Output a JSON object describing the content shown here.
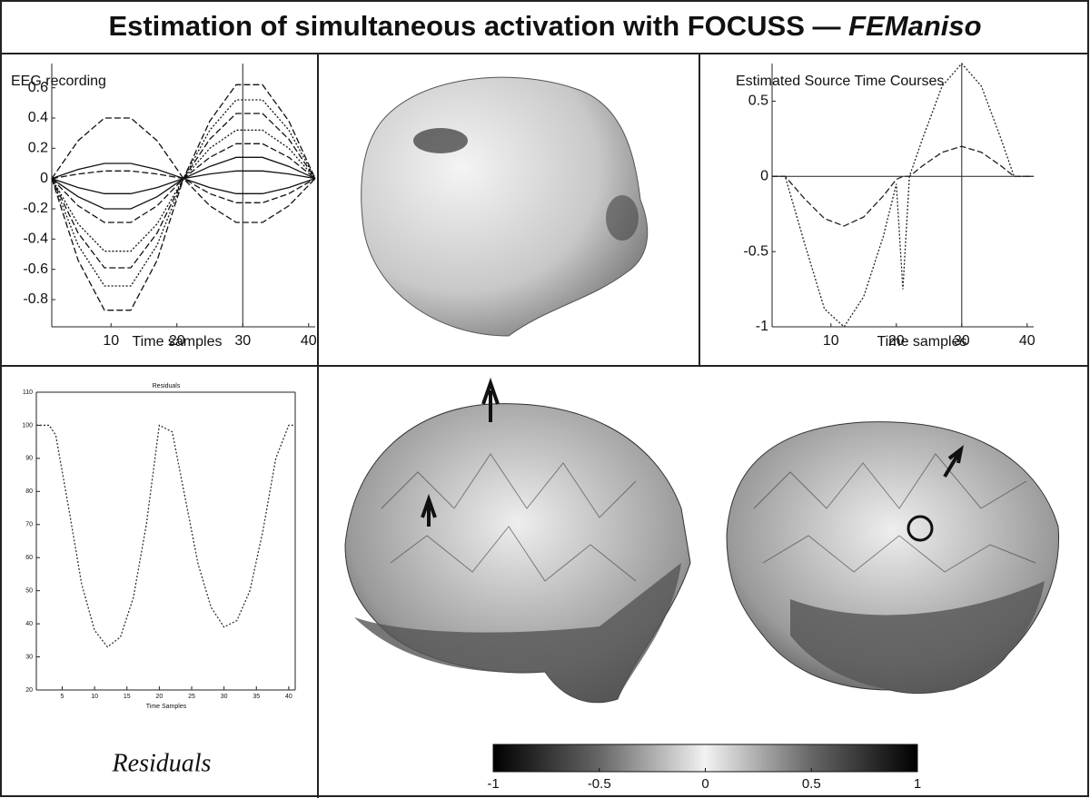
{
  "title": "Estimation of simultaneous activation with FOCUSS — ",
  "title_em": "FEManiso",
  "caption": "Residuals",
  "chart_data": [
    {
      "type": "line",
      "title": "EEG recording",
      "x_label": "Time samples",
      "color": "#111111",
      "x": [
        1,
        5,
        9,
        13,
        17,
        21,
        25,
        29,
        33,
        37,
        41
      ],
      "series": [
        {
          "values": [
            0,
            0.25,
            0.4,
            0.4,
            0.25,
            0,
            -0.18,
            -0.29,
            -0.29,
            -0.18,
            0
          ],
          "style": "dashed"
        },
        {
          "values": [
            0,
            -0.54,
            -0.87,
            -0.87,
            -0.54,
            0,
            0.38,
            0.62,
            0.62,
            0.38,
            0
          ],
          "style": "dashed"
        },
        {
          "values": [
            0,
            -0.44,
            -0.71,
            -0.71,
            -0.44,
            0,
            0.32,
            0.52,
            0.52,
            0.32,
            0
          ],
          "style": "dotted"
        },
        {
          "values": [
            0,
            -0.36,
            -0.59,
            -0.59,
            -0.36,
            0,
            0.26,
            0.43,
            0.43,
            0.26,
            0
          ],
          "style": "dashed"
        },
        {
          "values": [
            0,
            -0.3,
            -0.48,
            -0.48,
            -0.3,
            0,
            0.2,
            0.32,
            0.32,
            0.2,
            0
          ],
          "style": "dotted"
        },
        {
          "values": [
            0,
            -0.18,
            -0.29,
            -0.29,
            -0.18,
            0,
            0.14,
            0.23,
            0.23,
            0.14,
            0
          ],
          "style": "dashed"
        },
        {
          "values": [
            0,
            -0.12,
            -0.2,
            -0.2,
            -0.12,
            0,
            0.08,
            0.14,
            0.14,
            0.08,
            0
          ],
          "style": "solid"
        },
        {
          "values": [
            0,
            0.06,
            0.1,
            0.1,
            0.06,
            0,
            -0.06,
            -0.1,
            -0.1,
            -0.06,
            0
          ],
          "style": "solid"
        },
        {
          "values": [
            0,
            -0.06,
            -0.1,
            -0.1,
            -0.06,
            0,
            0.03,
            0.05,
            0.05,
            0.03,
            0
          ],
          "style": "solid"
        },
        {
          "values": [
            0,
            0.03,
            0.05,
            0.05,
            0.03,
            0,
            -0.1,
            -0.16,
            -0.16,
            -0.1,
            0
          ],
          "style": "dashed"
        }
      ],
      "cursor_x": 30,
      "xlim": [
        1,
        41
      ],
      "ylim": [
        -0.98,
        0.76
      ],
      "xticks": [
        10,
        20,
        30,
        40
      ],
      "yticks": [
        0.6,
        0.4,
        0.2,
        0,
        -0.2,
        -0.4,
        -0.6,
        -0.8
      ]
    },
    {
      "type": "line",
      "title": "Estimated Source Time Courses",
      "x_label": "Time samples",
      "color": "#222222",
      "x": [
        1,
        3,
        6,
        9,
        12,
        15,
        18,
        20,
        21,
        22,
        24,
        27,
        30,
        33,
        36,
        38,
        41
      ],
      "series": [
        {
          "values": [
            0,
            0,
            -0.45,
            -0.88,
            -1,
            -0.8,
            -0.4,
            -0.05,
            -0.75,
            0,
            0.25,
            0.6,
            0.75,
            0.6,
            0.25,
            0,
            0
          ],
          "style": "dotted"
        },
        {
          "values": [
            0,
            0,
            -0.15,
            -0.28,
            -0.33,
            -0.27,
            -0.13,
            -0.02,
            0,
            0,
            0.07,
            0.16,
            0.2,
            0.16,
            0.07,
            0,
            0
          ],
          "style": "dashed"
        }
      ],
      "cursor_x": 30,
      "zero_line": true,
      "xlim": [
        1,
        41
      ],
      "ylim": [
        -1,
        0.75
      ],
      "xticks": [
        10,
        20,
        30,
        40
      ],
      "yticks": [
        0.5,
        0,
        -0.5,
        -1
      ]
    },
    {
      "type": "line",
      "title": "Residuals",
      "x_label": "Time Samples",
      "color": "#333333",
      "x": [
        1,
        3,
        4,
        6,
        8,
        10,
        12,
        14,
        16,
        18,
        20,
        21,
        22,
        24,
        26,
        28,
        30,
        32,
        34,
        36,
        38,
        40,
        41
      ],
      "series": [
        {
          "values": [
            100,
            100,
            97,
            75,
            52,
            38,
            33,
            36,
            48,
            70,
            100,
            99,
            98,
            78,
            58,
            45,
            39,
            41,
            50,
            68,
            90,
            100,
            100
          ],
          "style": "dotted"
        }
      ],
      "xlim": [
        1,
        41
      ],
      "ylim": [
        20,
        110
      ],
      "xticks": [
        5,
        10,
        15,
        20,
        25,
        30,
        35,
        40
      ],
      "yticks": [
        20,
        30,
        40,
        50,
        60,
        70,
        80,
        90,
        100,
        110
      ]
    },
    {
      "type": "colorbar",
      "clim": [
        -1,
        1
      ],
      "ticks": [
        -1,
        -0.5,
        0,
        0.5,
        1
      ]
    }
  ]
}
